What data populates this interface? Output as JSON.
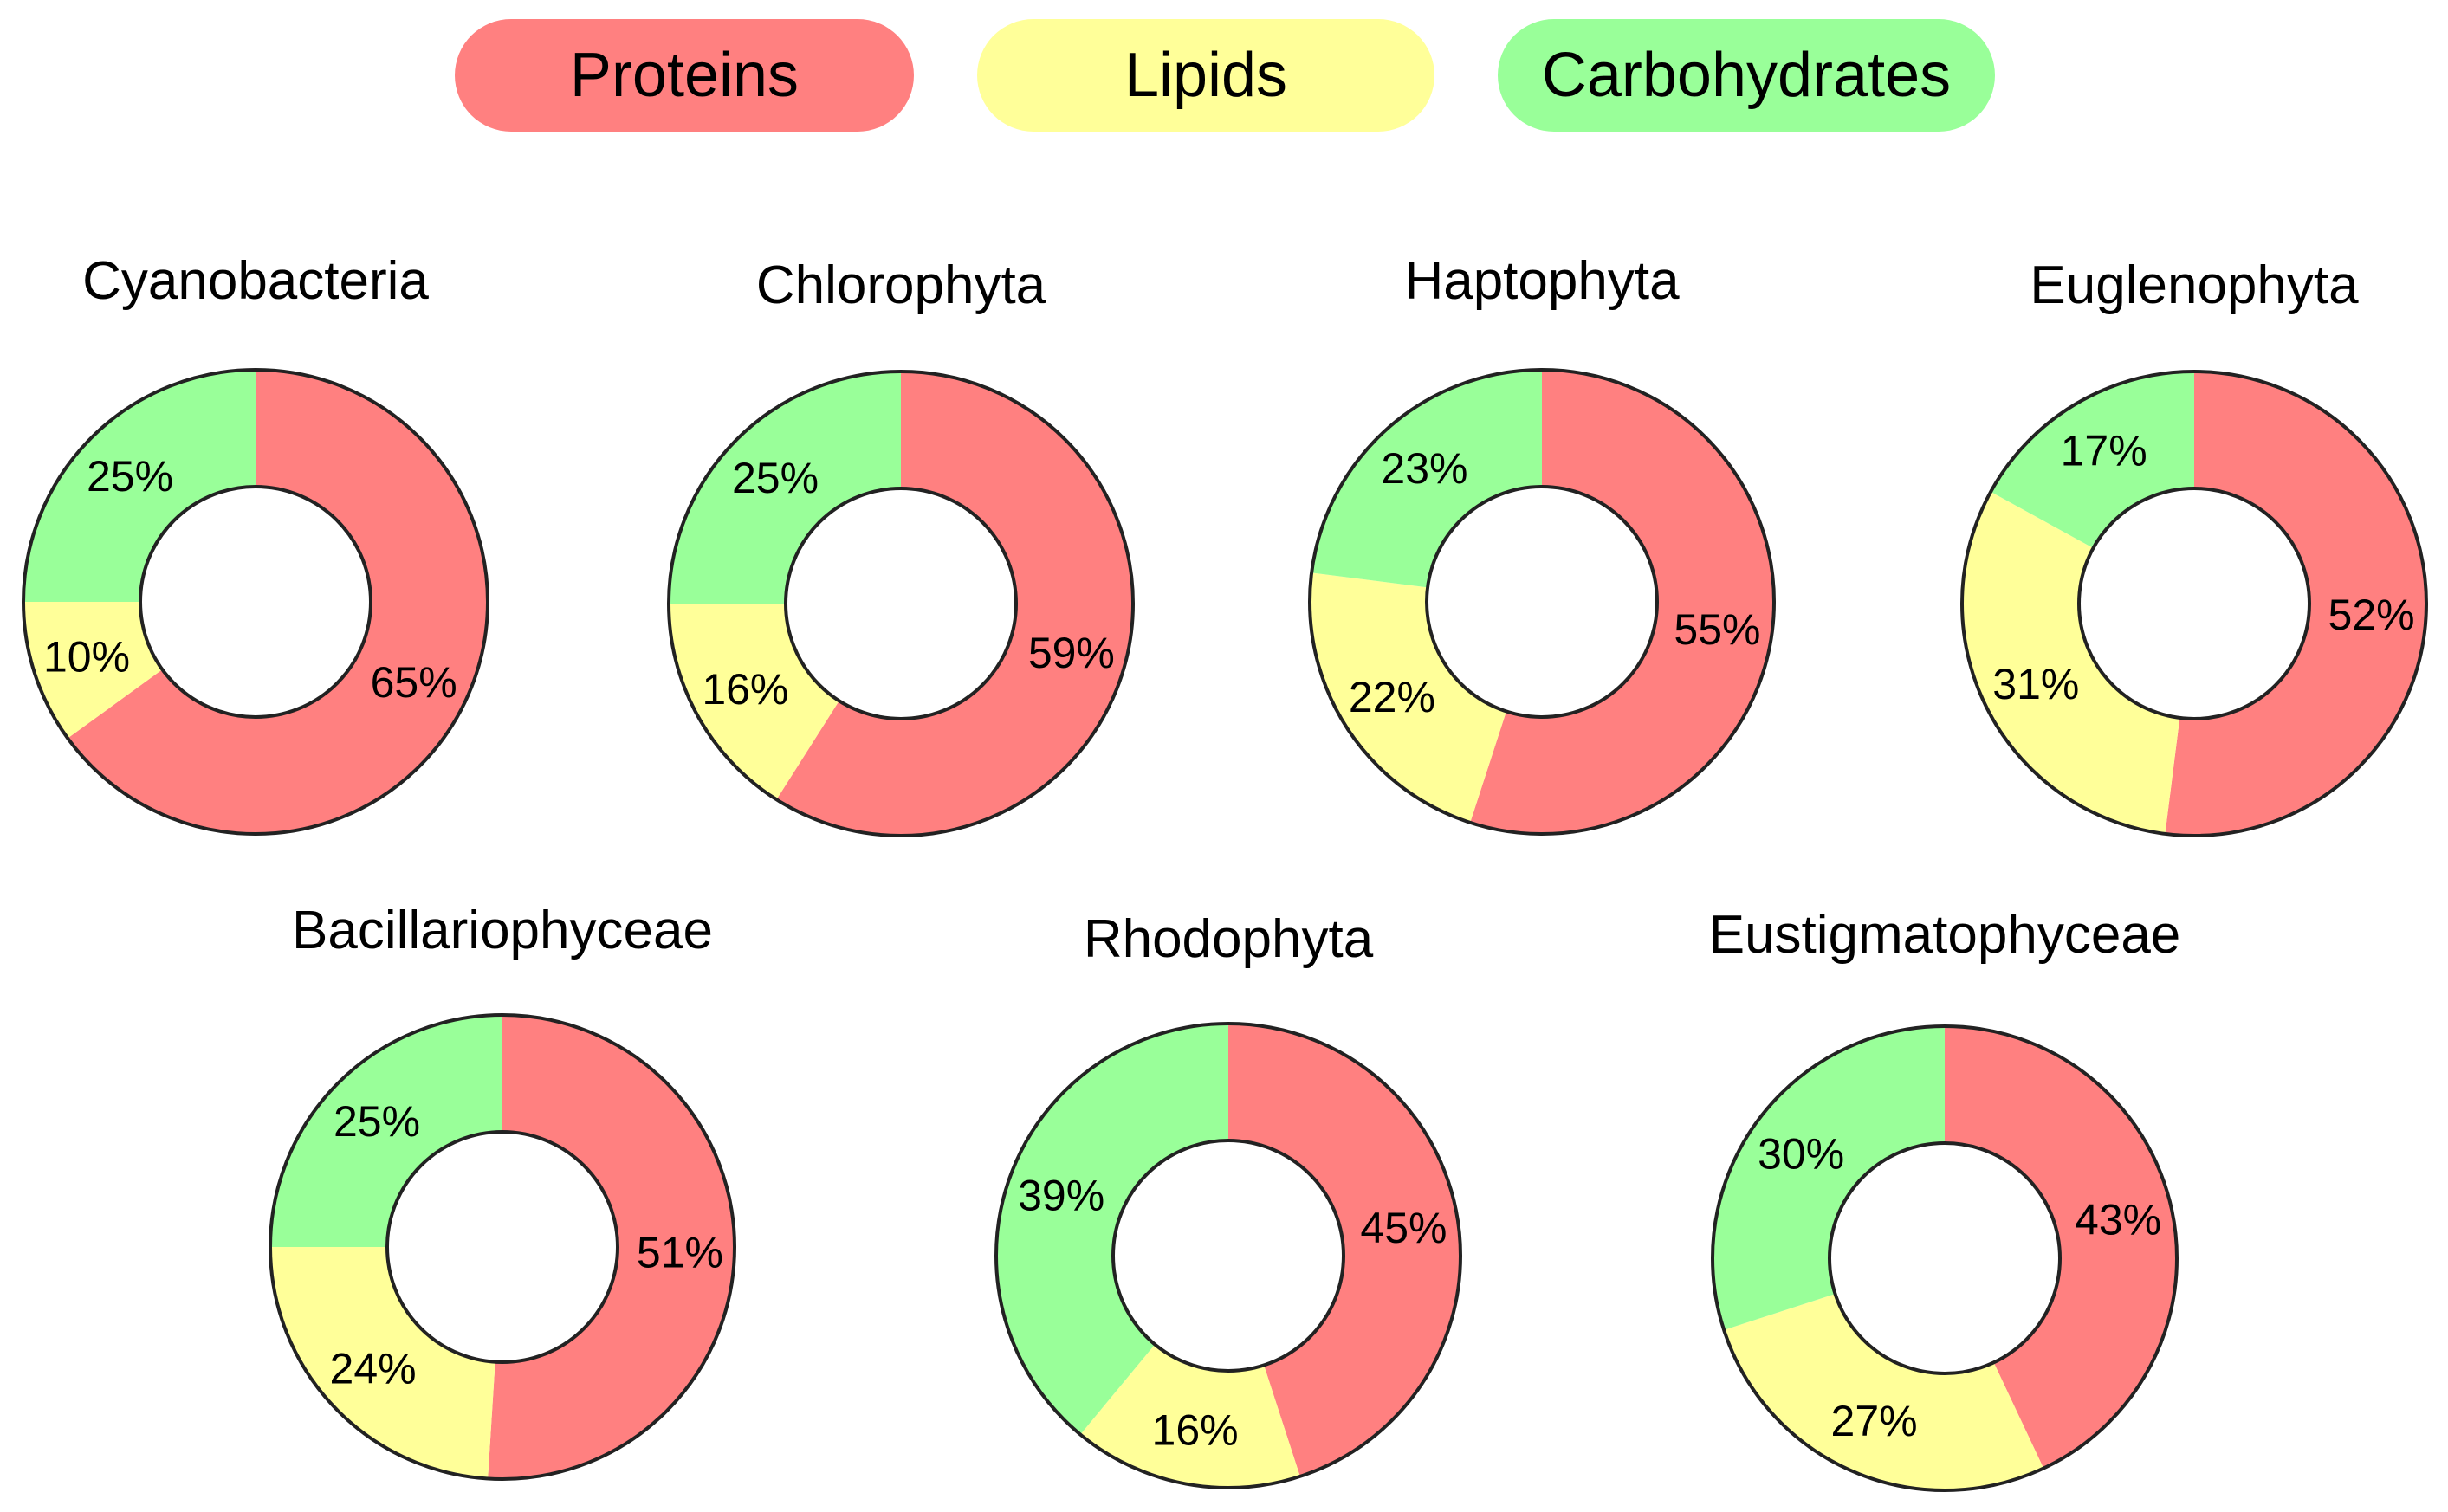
{
  "legend": {
    "proteins": "Proteins",
    "lipids": "Lipids",
    "carbohydrates": "Carbohydrates"
  },
  "colors": {
    "proteins": "#ff8080",
    "lipids": "#ffff99",
    "carbohydrates": "#99ff99",
    "outline": "#222222"
  },
  "chart_data": {
    "type": "pie",
    "variant": "donut",
    "series_order": [
      "Proteins",
      "Lipids",
      "Carbohydrates"
    ],
    "charts": [
      {
        "title": "Cyanobacteria",
        "values": [
          65,
          10,
          25
        ]
      },
      {
        "title": "Chlorophyta",
        "values": [
          59,
          16,
          25
        ]
      },
      {
        "title": "Haptophyta",
        "values": [
          55,
          22,
          23
        ]
      },
      {
        "title": "Euglenophyta",
        "values": [
          52,
          31,
          17
        ]
      },
      {
        "title": "Bacillariophyceae",
        "values": [
          51,
          24,
          25
        ]
      },
      {
        "title": "Rhodophyta",
        "values": [
          45,
          16,
          39
        ]
      },
      {
        "title": "Eustigmatophyceae",
        "values": [
          43,
          27,
          30
        ]
      }
    ]
  }
}
